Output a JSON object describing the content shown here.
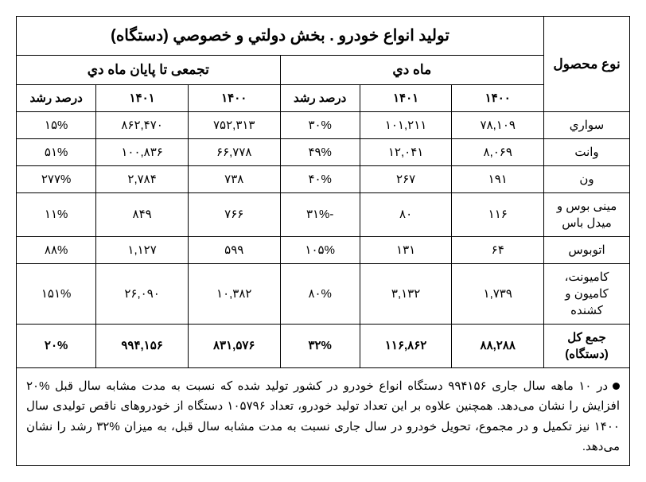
{
  "title": "تولید انواع خودرو . بخش دولتي و خصوصي (دستگاه)",
  "product_header": "نوع محصول",
  "monthly_header": "ماه دي",
  "cumulative_header": "تجمعی تا پایان ماه دي",
  "col_1400": "۱۴۰۰",
  "col_1401": "۱۴۰۱",
  "col_growth": "درصد رشد",
  "rows": [
    {
      "name": "سواري",
      "m1400": "۷۸,۱۰۹",
      "m1401": "۱۰۱,۲۱۱",
      "mgrowth": "۳۰%",
      "c1400": "۷۵۲,۳۱۳",
      "c1401": "۸۶۲,۴۷۰",
      "cgrowth": "۱۵%"
    },
    {
      "name": "وانت",
      "m1400": "۸,۰۶۹",
      "m1401": "۱۲,۰۴۱",
      "mgrowth": "۴۹%",
      "c1400": "۶۶,۷۷۸",
      "c1401": "۱۰۰,۸۳۶",
      "cgrowth": "۵۱%"
    },
    {
      "name": "ون",
      "m1400": "۱۹۱",
      "m1401": "۲۶۷",
      "mgrowth": "۴۰%",
      "c1400": "۷۳۸",
      "c1401": "۲,۷۸۴",
      "cgrowth": "۲۷۷%"
    },
    {
      "name": "مینی بوس و میدل باس",
      "m1400": "۱۱۶",
      "m1401": "۸۰",
      "mgrowth": "-۳۱%",
      "c1400": "۷۶۶",
      "c1401": "۸۴۹",
      "cgrowth": "۱۱%"
    },
    {
      "name": "اتوبوس",
      "m1400": "۶۴",
      "m1401": "۱۳۱",
      "mgrowth": "۱۰۵%",
      "c1400": "۵۹۹",
      "c1401": "۱,۱۲۷",
      "cgrowth": "۸۸%"
    },
    {
      "name": "کامیونت، کامیون و کشنده",
      "m1400": "۱,۷۳۹",
      "m1401": "۳,۱۳۲",
      "mgrowth": "۸۰%",
      "c1400": "۱۰,۳۸۲",
      "c1401": "۲۶,۰۹۰",
      "cgrowth": "۱۵۱%"
    }
  ],
  "total": {
    "name": "جمع کل (دستگاه)",
    "m1400": "۸۸,۲۸۸",
    "m1401": "۱۱۶,۸۶۲",
    "mgrowth": "۳۲%",
    "c1400": "۸۳۱,۵۷۶",
    "c1401": "۹۹۴,۱۵۶",
    "cgrowth": "۲۰%"
  },
  "note": "در ۱۰ ماهه سال جاری ۹۹۴۱۵۶ دستگاه انواع خودرو در کشور تولید شده که نسبت به مدت مشابه سال قبل %۲۰ افزایش را نشان می‌دهد. همچنین علاوه بر این تعداد تولید خودرو، تعداد ۱۰۵۷۹۶ دستگاه از خودروهای ناقص تولیدی سال ۱۴۰۰ نیز تکمیل و در مجموع، تحویل خودرو در سال جاری نسبت به مدت مشابه سال قبل، به میزان %۳۲ رشد را نشان می‌دهد."
}
